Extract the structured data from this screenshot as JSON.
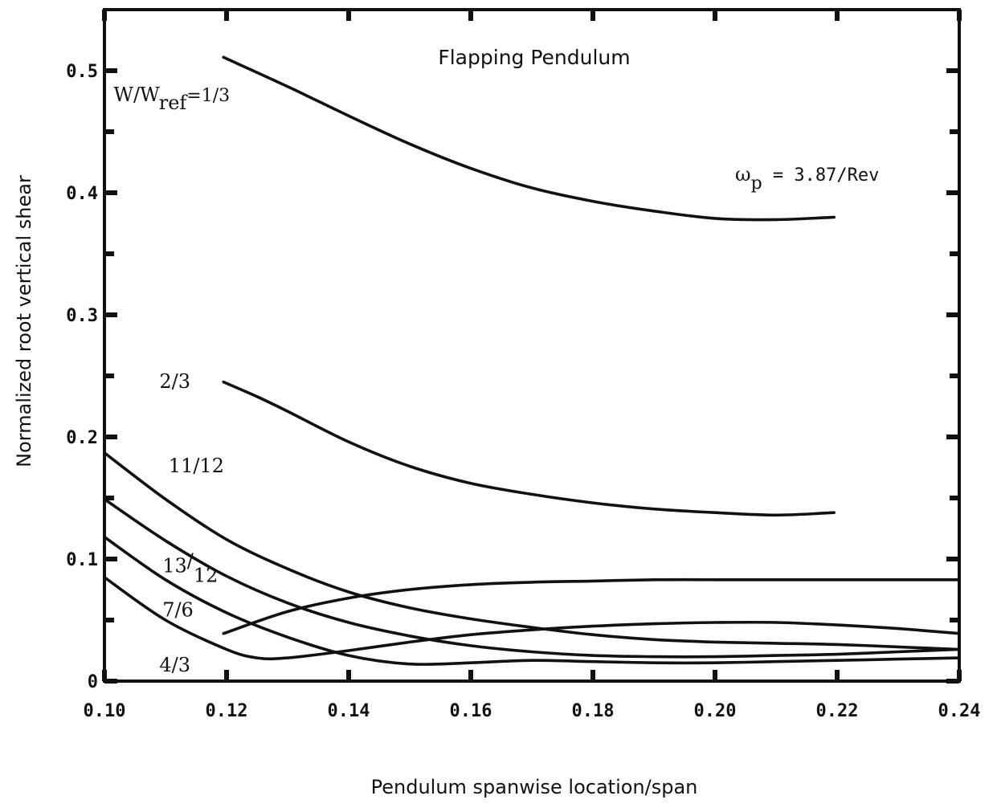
{
  "chart_data": {
    "type": "line",
    "title": "Flapping Pendulum",
    "annotation": "ω_p = 3.87/Rev",
    "xlabel": "Pendulum spanwise location/span",
    "ylabel": "Normalized root vertical shear",
    "xlim": [
      0.1,
      0.24
    ],
    "ylim": [
      0,
      0.55
    ],
    "x_ticks": [
      "0.10",
      "0.12",
      "0.14",
      "0.16",
      "0.18",
      "0.20",
      "0.22",
      "0.24"
    ],
    "x_tick_values": [
      0.1,
      0.12,
      0.14,
      0.16,
      0.18,
      0.2,
      0.22,
      0.24
    ],
    "y_ticks": [
      "0",
      "0.1",
      "0.2",
      "0.3",
      "0.4",
      "0.5"
    ],
    "y_tick_values": [
      0,
      0.1,
      0.2,
      0.3,
      0.4,
      0.5
    ],
    "grid": false,
    "series": [
      {
        "name": "W/W_ref=1/3",
        "points": [
          [
            0.1195,
            0.511
          ],
          [
            0.13,
            0.487
          ],
          [
            0.14,
            0.463
          ],
          [
            0.15,
            0.44
          ],
          [
            0.16,
            0.42
          ],
          [
            0.17,
            0.404
          ],
          [
            0.18,
            0.393
          ],
          [
            0.19,
            0.385
          ],
          [
            0.2,
            0.379
          ],
          [
            0.21,
            0.378
          ],
          [
            0.2195,
            0.38
          ]
        ]
      },
      {
        "name": "2/3",
        "points": [
          [
            0.1195,
            0.245
          ],
          [
            0.125,
            0.233
          ],
          [
            0.13,
            0.221
          ],
          [
            0.14,
            0.196
          ],
          [
            0.15,
            0.176
          ],
          [
            0.16,
            0.162
          ],
          [
            0.17,
            0.153
          ],
          [
            0.18,
            0.146
          ],
          [
            0.19,
            0.141
          ],
          [
            0.2,
            0.138
          ],
          [
            0.21,
            0.136
          ],
          [
            0.2195,
            0.138
          ]
        ]
      },
      {
        "name": "11/12",
        "points": [
          [
            0.1,
            0.187
          ],
          [
            0.11,
            0.149
          ],
          [
            0.12,
            0.116
          ],
          [
            0.13,
            0.092
          ],
          [
            0.14,
            0.073
          ],
          [
            0.15,
            0.06
          ],
          [
            0.16,
            0.051
          ],
          [
            0.17,
            0.044
          ],
          [
            0.18,
            0.038
          ],
          [
            0.19,
            0.034
          ],
          [
            0.2,
            0.032
          ],
          [
            0.21,
            0.031
          ],
          [
            0.22,
            0.03
          ],
          [
            0.23,
            0.028
          ],
          [
            0.24,
            0.026
          ]
        ]
      },
      {
        "name": "13/12",
        "points": [
          [
            0.1,
            0.149
          ],
          [
            0.11,
            0.115
          ],
          [
            0.12,
            0.086
          ],
          [
            0.13,
            0.064
          ],
          [
            0.14,
            0.048
          ],
          [
            0.15,
            0.037
          ],
          [
            0.16,
            0.029
          ],
          [
            0.17,
            0.024
          ],
          [
            0.18,
            0.021
          ],
          [
            0.19,
            0.02
          ],
          [
            0.2,
            0.02
          ],
          [
            0.21,
            0.021
          ],
          [
            0.22,
            0.022
          ],
          [
            0.23,
            0.024
          ],
          [
            0.24,
            0.026
          ]
        ]
      },
      {
        "name": "7/6",
        "points": [
          [
            0.1,
            0.118
          ],
          [
            0.11,
            0.083
          ],
          [
            0.12,
            0.056
          ],
          [
            0.13,
            0.036
          ],
          [
            0.14,
            0.021
          ],
          [
            0.15,
            0.014
          ],
          [
            0.16,
            0.015
          ],
          [
            0.17,
            0.017
          ],
          [
            0.18,
            0.016
          ],
          [
            0.19,
            0.015
          ],
          [
            0.2,
            0.015
          ],
          [
            0.21,
            0.016
          ],
          [
            0.22,
            0.017
          ],
          [
            0.23,
            0.018
          ],
          [
            0.24,
            0.019
          ]
        ]
      },
      {
        "name": "4/3",
        "points": [
          [
            0.1,
            0.085
          ],
          [
            0.11,
            0.05
          ],
          [
            0.12,
            0.026
          ],
          [
            0.125,
            0.019
          ],
          [
            0.13,
            0.019
          ],
          [
            0.14,
            0.025
          ],
          [
            0.15,
            0.032
          ],
          [
            0.16,
            0.038
          ],
          [
            0.17,
            0.042
          ],
          [
            0.18,
            0.045
          ],
          [
            0.19,
            0.047
          ],
          [
            0.2,
            0.048
          ],
          [
            0.21,
            0.048
          ],
          [
            0.22,
            0.046
          ],
          [
            0.23,
            0.043
          ],
          [
            0.24,
            0.039
          ]
        ]
      },
      {
        "name": "",
        "points": [
          [
            0.1195,
            0.039
          ],
          [
            0.13,
            0.057
          ],
          [
            0.14,
            0.068
          ],
          [
            0.15,
            0.075
          ],
          [
            0.16,
            0.079
          ],
          [
            0.17,
            0.081
          ],
          [
            0.18,
            0.082
          ],
          [
            0.19,
            0.083
          ],
          [
            0.2,
            0.083
          ],
          [
            0.21,
            0.083
          ],
          [
            0.22,
            0.083
          ],
          [
            0.23,
            0.083
          ],
          [
            0.24,
            0.083
          ]
        ]
      }
    ],
    "curve_labels": [
      {
        "main": "W/W",
        "sub": "ref",
        "tail": "=1/3",
        "x": 0.1015,
        "y": 0.475
      },
      {
        "main": "2/3",
        "x": 0.109,
        "y": 0.24
      },
      {
        "main": "11/12",
        "x": 0.1105,
        "y": 0.171
      },
      {
        "main": "13",
        "sup_tail": "/",
        "sub": "12",
        "x": 0.1095,
        "y": 0.089
      },
      {
        "main": "7/6",
        "x": 0.1095,
        "y": 0.053
      },
      {
        "main": "4/3",
        "x": 0.109,
        "y": 0.008
      }
    ]
  }
}
